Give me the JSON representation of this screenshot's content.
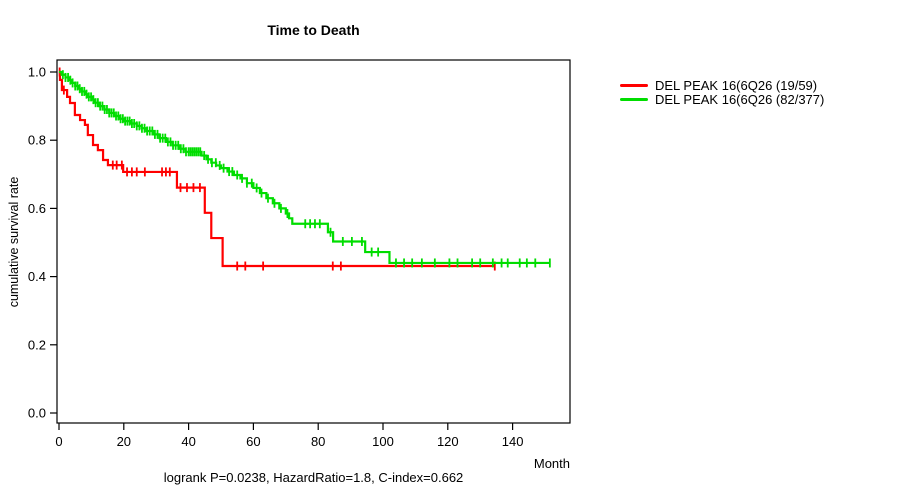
{
  "chart_data": {
    "type": "line",
    "subtype": "kaplan-meier-step",
    "title": "Time to Death",
    "xlabel": "Month",
    "ylabel": "cumulative survival rate",
    "annotation": "logrank P=0.0238, HazardRatio=1.8, C-index=0.662",
    "xlim": [
      0,
      157
    ],
    "ylim": [
      0.0,
      1.04
    ],
    "x_ticks": [
      0,
      20,
      40,
      60,
      80,
      100,
      120,
      140
    ],
    "y_ticks": [
      "0.0",
      "0.2",
      "0.4",
      "0.6",
      "0.8",
      "1.0"
    ],
    "grid": false,
    "legend_position": "right-outside",
    "axis_color": "#000000",
    "series": [
      {
        "id": "red",
        "name": "DEL PEAK 16(6Q26 (19/59)",
        "color": "#ff0000",
        "events_over_n": "19/59",
        "end_time": 134.5,
        "steps": [
          [
            0,
            1.0
          ],
          [
            0.3,
            0.977
          ],
          [
            0.9,
            0.947
          ],
          [
            2.5,
            0.927
          ],
          [
            3.4,
            0.909
          ],
          [
            4.9,
            0.874
          ],
          [
            6.5,
            0.859
          ],
          [
            8.0,
            0.845
          ],
          [
            8.9,
            0.815
          ],
          [
            10.5,
            0.786
          ],
          [
            12.0,
            0.771
          ],
          [
            13.6,
            0.742
          ],
          [
            15.1,
            0.727
          ],
          [
            19.8,
            0.707
          ],
          [
            36.4,
            0.661
          ],
          [
            45.0,
            0.587
          ],
          [
            47.0,
            0.513
          ],
          [
            50.5,
            0.431
          ]
        ],
        "censor_times": [
          0.2,
          1.5,
          16.6,
          17.8,
          19.4,
          21,
          22.5,
          24,
          26.5,
          31.8,
          33,
          34.2,
          37.5,
          39.5,
          41.5,
          43.5,
          55,
          57.5,
          63,
          84.5,
          87,
          134.5
        ]
      },
      {
        "id": "green",
        "name": "DEL PEAK 16(6Q26 (82/377)",
        "color": "#00dd00",
        "events_over_n": "82/377",
        "end_time": 151.5,
        "steps": [
          [
            0,
            1.0
          ],
          [
            0.8,
            0.992
          ],
          [
            2,
            0.984
          ],
          [
            3,
            0.976
          ],
          [
            4,
            0.968
          ],
          [
            5,
            0.959
          ],
          [
            6,
            0.951
          ],
          [
            7,
            0.943
          ],
          [
            8,
            0.935
          ],
          [
            9,
            0.927
          ],
          [
            10,
            0.919
          ],
          [
            11,
            0.91
          ],
          [
            12.5,
            0.9
          ],
          [
            14,
            0.89
          ],
          [
            15.5,
            0.88
          ],
          [
            17,
            0.871
          ],
          [
            18.5,
            0.863
          ],
          [
            20,
            0.856
          ],
          [
            22,
            0.849
          ],
          [
            24,
            0.842
          ],
          [
            25.5,
            0.835
          ],
          [
            27,
            0.827
          ],
          [
            29,
            0.817
          ],
          [
            31,
            0.806
          ],
          [
            33,
            0.795
          ],
          [
            35,
            0.785
          ],
          [
            37,
            0.775
          ],
          [
            39,
            0.766
          ],
          [
            44,
            0.755
          ],
          [
            45.5,
            0.744
          ],
          [
            47,
            0.734
          ],
          [
            48.5,
            0.726
          ],
          [
            50,
            0.718
          ],
          [
            52,
            0.708
          ],
          [
            54,
            0.698
          ],
          [
            56,
            0.688
          ],
          [
            58,
            0.674
          ],
          [
            60,
            0.66
          ],
          [
            62,
            0.645
          ],
          [
            64,
            0.63
          ],
          [
            66,
            0.615
          ],
          [
            68,
            0.6
          ],
          [
            70,
            0.585
          ],
          [
            71,
            0.571
          ],
          [
            72,
            0.555
          ],
          [
            83,
            0.53
          ],
          [
            84.6,
            0.503
          ],
          [
            94.5,
            0.472
          ],
          [
            102,
            0.44
          ]
        ],
        "censor_times": [
          1.2,
          2,
          2.8,
          3.5,
          4.2,
          5,
          5.7,
          6.4,
          7.1,
          7.8,
          8.5,
          9.2,
          9.9,
          10.6,
          11.3,
          12,
          12.7,
          13.4,
          14.1,
          14.8,
          15.5,
          16.2,
          16.9,
          17.6,
          18.3,
          19,
          19.7,
          20.4,
          21.1,
          21.8,
          22.5,
          23.2,
          24,
          24.8,
          25.6,
          26.4,
          27.2,
          28,
          28.8,
          29.6,
          30.4,
          31.2,
          32,
          32.8,
          33.6,
          34.4,
          35.2,
          36,
          36.8,
          37.6,
          38.4,
          39.2,
          40,
          40.6,
          41.2,
          41.8,
          42.4,
          43,
          43.6,
          44.8,
          46,
          47.2,
          48.4,
          49.6,
          50.8,
          52.5,
          53.5,
          55,
          56.5,
          58,
          59.5,
          61,
          62.5,
          64.5,
          66.5,
          68.5,
          70.5,
          76,
          77.5,
          79,
          80.5,
          83.8,
          87.6,
          90.4,
          93.5,
          96.5,
          98.5,
          104,
          106.5,
          109,
          112,
          116,
          120.5,
          123,
          127.5,
          130,
          133.9,
          136.6,
          138.5,
          142.2,
          144.4,
          147,
          151.5
        ]
      }
    ]
  }
}
